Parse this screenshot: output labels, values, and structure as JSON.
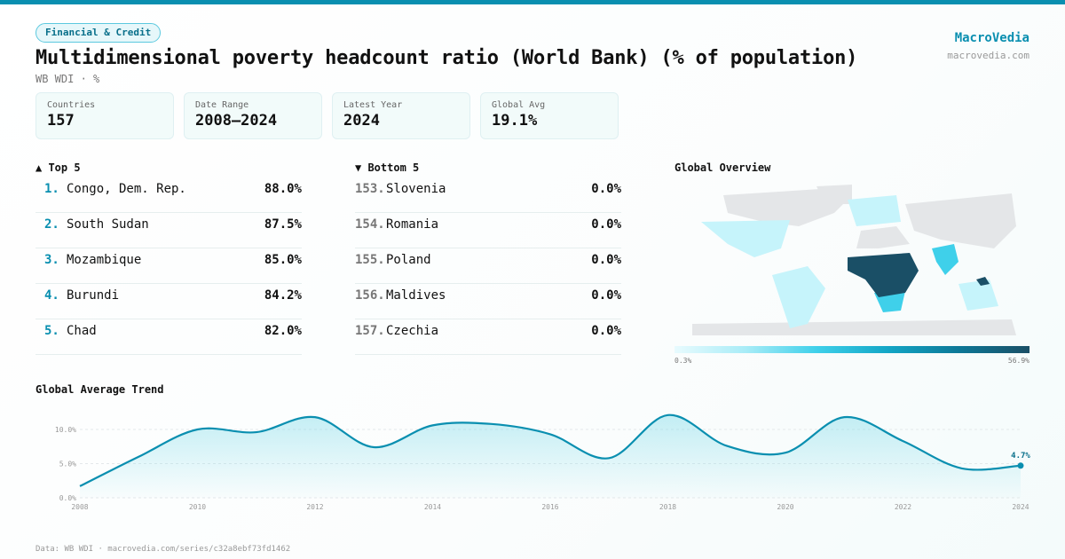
{
  "header": {
    "category": "Financial & Credit",
    "title": "Multidimensional poverty headcount ratio (World Bank) (% of population)",
    "subtitle": "WB WDI · %",
    "brand": "MacroVedia",
    "brand_url": "macrovedia.com"
  },
  "stats": [
    {
      "label": "Countries",
      "value": "157"
    },
    {
      "label": "Date Range",
      "value": "2008–2024"
    },
    {
      "label": "Latest Year",
      "value": "2024"
    },
    {
      "label": "Global Avg",
      "value": "19.1%"
    }
  ],
  "top5": {
    "title": "▲ Top 5",
    "items": [
      {
        "rank": "1.",
        "name": "Congo, Dem. Rep.",
        "value": "88.0%"
      },
      {
        "rank": "2.",
        "name": "South Sudan",
        "value": "87.5%"
      },
      {
        "rank": "3.",
        "name": "Mozambique",
        "value": "85.0%"
      },
      {
        "rank": "4.",
        "name": "Burundi",
        "value": "84.2%"
      },
      {
        "rank": "5.",
        "name": "Chad",
        "value": "82.0%"
      }
    ]
  },
  "bottom5": {
    "title": "▼ Bottom 5",
    "items": [
      {
        "rank": "153.",
        "name": "Slovenia",
        "value": "0.0%"
      },
      {
        "rank": "154.",
        "name": "Romania",
        "value": "0.0%"
      },
      {
        "rank": "155.",
        "name": "Poland",
        "value": "0.0%"
      },
      {
        "rank": "156.",
        "name": "Maldives",
        "value": "0.0%"
      },
      {
        "rank": "157.",
        "name": "Czechia",
        "value": "0.0%"
      }
    ]
  },
  "map": {
    "title": "Global Overview",
    "legend_min": "0.3%",
    "legend_max": "56.9%",
    "colors": [
      "#e8fbfe",
      "#3fd0ea",
      "#0d7897",
      "#1a4f66"
    ],
    "no_data_color": "#e4e6e8"
  },
  "chart_data": {
    "type": "area",
    "title": "Global Average Trend",
    "x": [
      2008,
      2009,
      2010,
      2011,
      2012,
      2013,
      2014,
      2015,
      2016,
      2017,
      2018,
      2019,
      2020,
      2021,
      2022,
      2023,
      2024
    ],
    "values": [
      1.7,
      6.0,
      10.0,
      9.6,
      11.8,
      7.4,
      10.6,
      10.8,
      9.3,
      5.8,
      12.1,
      7.6,
      6.6,
      11.8,
      8.3,
      4.3,
      4.7
    ],
    "ylim": [
      0,
      12.5
    ],
    "yticks": [
      "0.0%",
      "5.0%",
      "10.0%"
    ],
    "ytick_values": [
      0,
      5,
      10
    ],
    "xticks": [
      "2008",
      "2010",
      "2012",
      "2014",
      "2016",
      "2018",
      "2020",
      "2022",
      "2024"
    ],
    "last_label": "4.7%",
    "color": "#0a8fb0",
    "grid": true
  },
  "footer": "Data: WB WDI · macrovedia.com/series/c32a8ebf73fd1462"
}
